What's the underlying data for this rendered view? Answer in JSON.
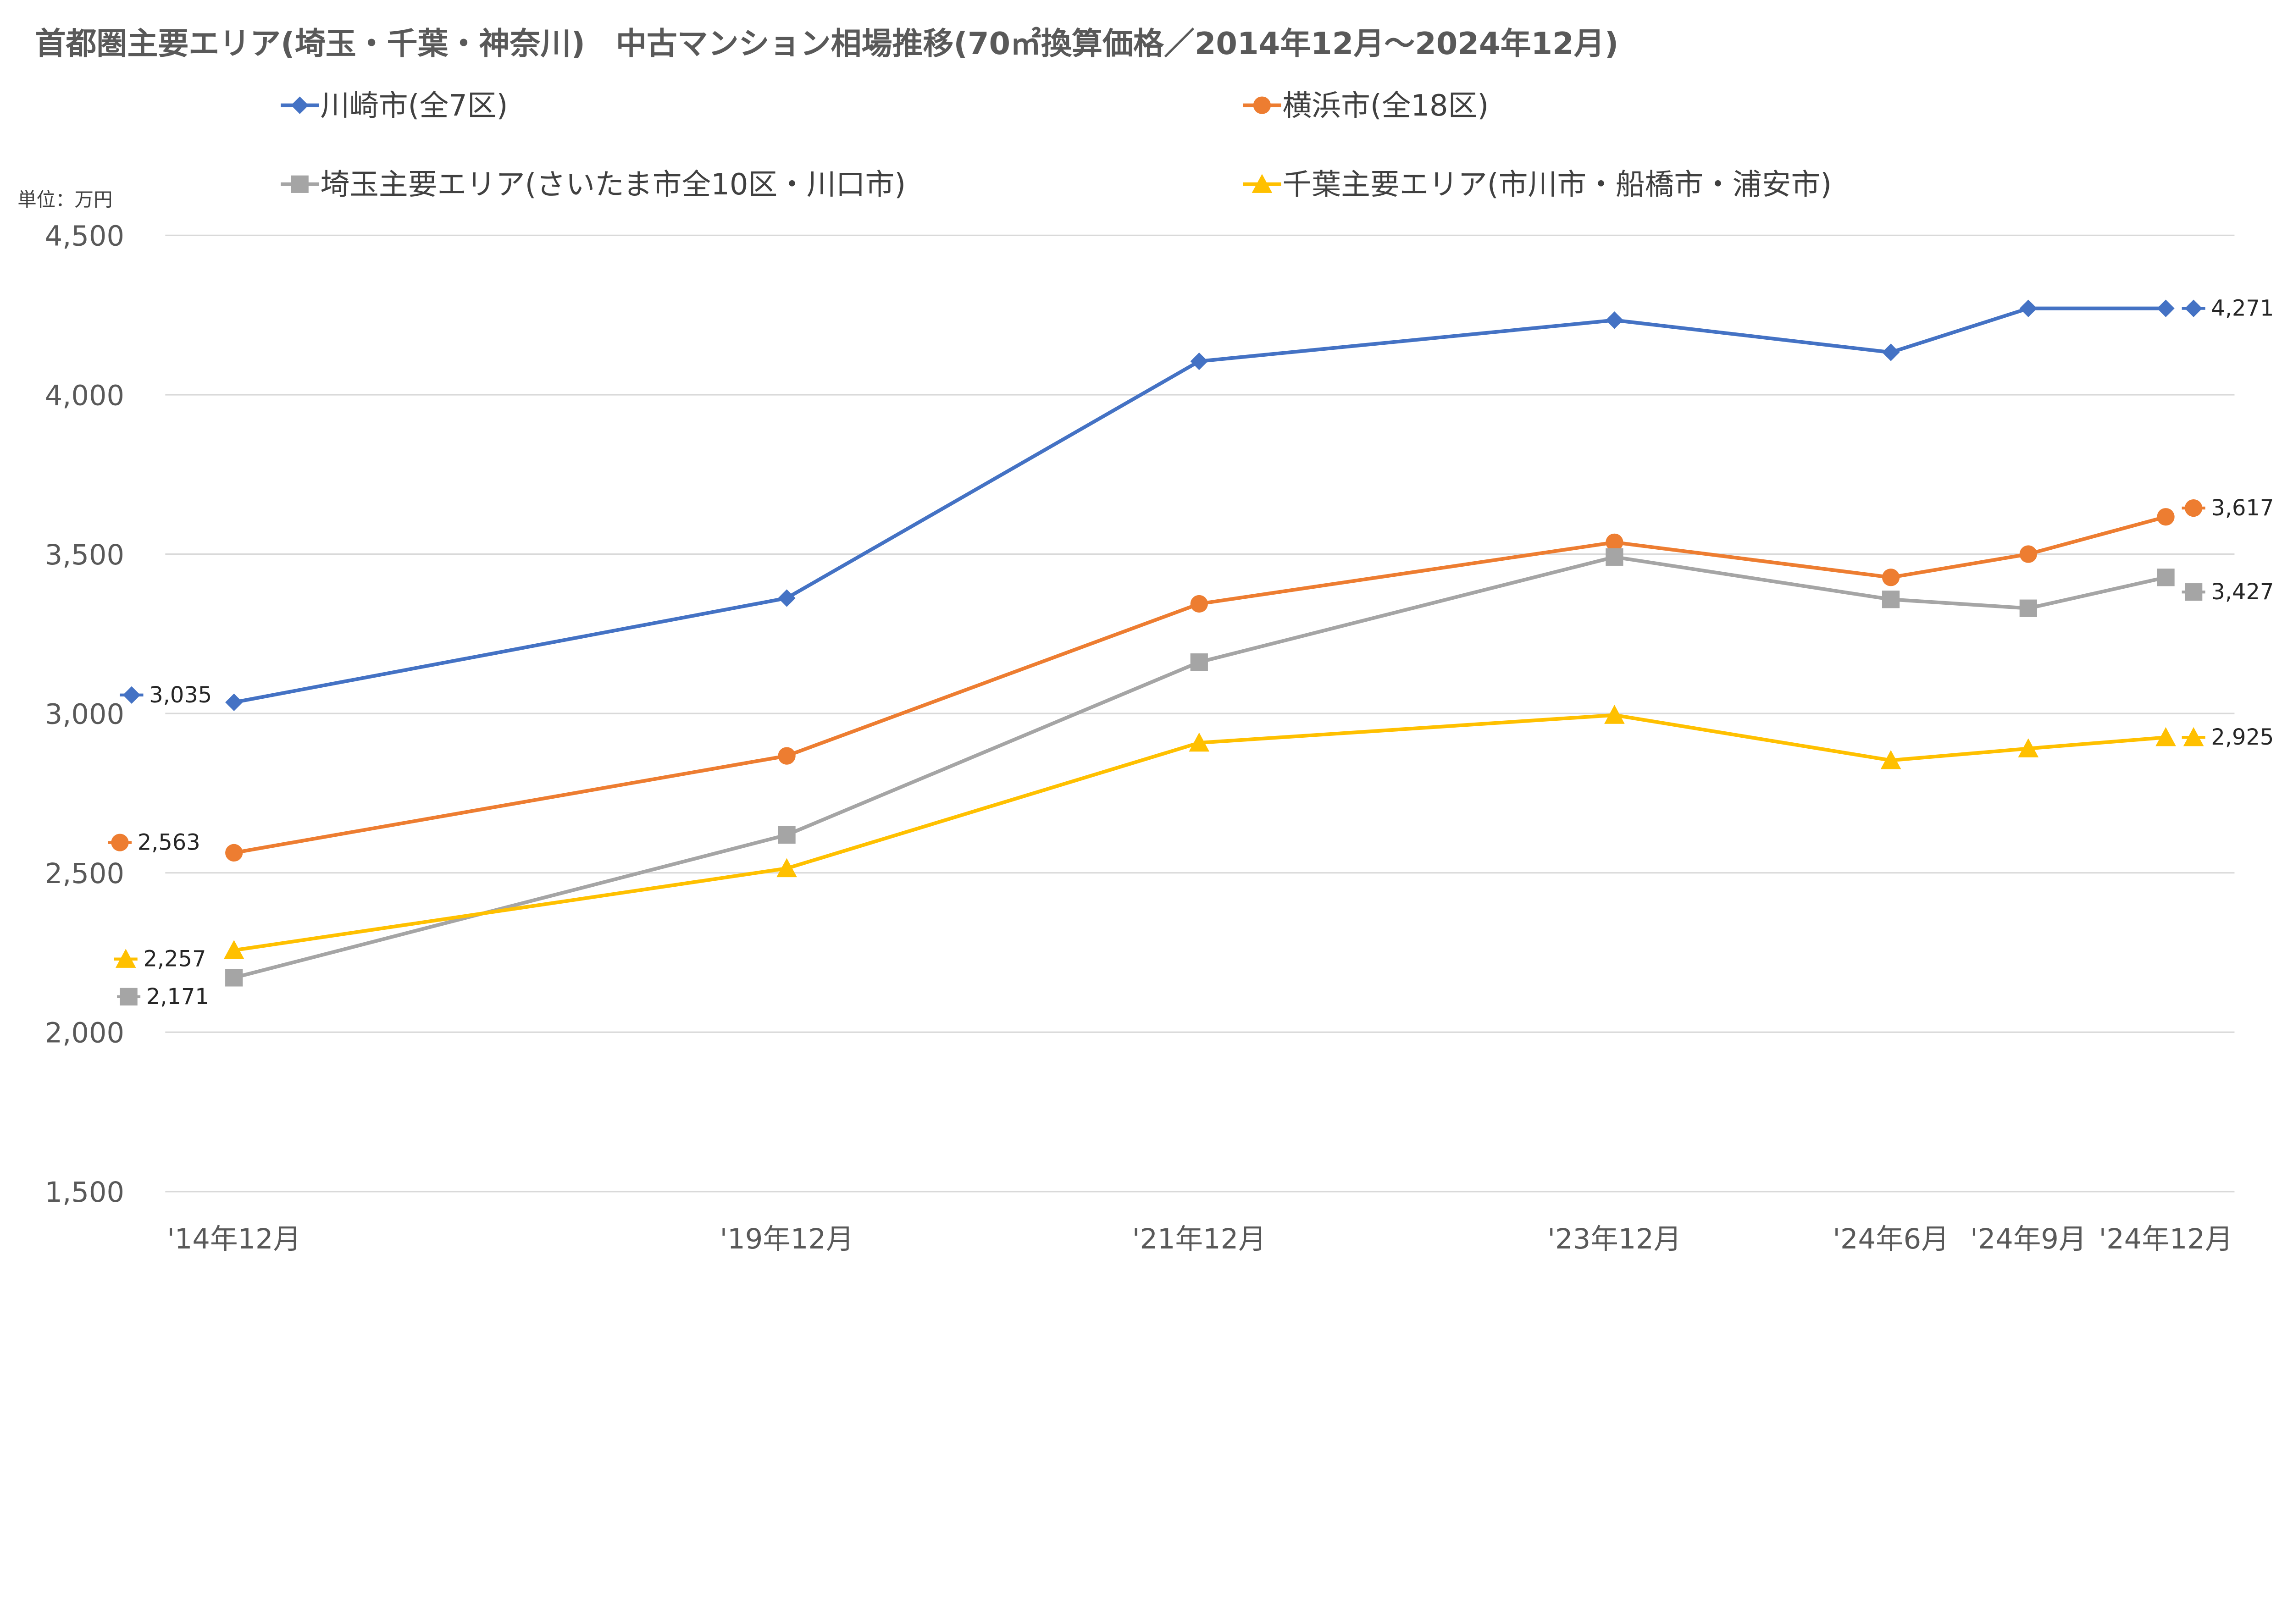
{
  "chart_data": {
    "type": "line",
    "title": "首都圏主要エリア(埼玉・千葉・神奈川)　中古マンション相場推移(70㎡換算価格／2014年12月～2024年12月)",
    "unit_label": "単位：万円",
    "categories": [
      "'14年12月",
      "'19年12月",
      "'21年12月",
      "'23年12月",
      "'24年6月",
      "'24年9月",
      "'24年12月"
    ],
    "ylim": [
      1500,
      4500
    ],
    "yticks": [
      "1,500",
      "2,000",
      "2,500",
      "3,000",
      "3,500",
      "4,000",
      "4,500"
    ],
    "ytick_values": [
      1500,
      2000,
      2500,
      3000,
      3500,
      4000,
      4500
    ],
    "grid": true,
    "legend_placement": "top",
    "series": [
      {
        "name": "川崎市(全7区)",
        "color": "#4472c4",
        "marker": "diamond",
        "values": [
          3035,
          3362,
          4105,
          4234,
          4133,
          4271,
          4271
        ],
        "first_label": "3,035",
        "last_label": "4,271"
      },
      {
        "name": "横浜市(全18区)",
        "color": "#ed7d31",
        "marker": "circle",
        "values": [
          2563,
          2867,
          3344,
          3537,
          3427,
          3500,
          3617
        ],
        "first_label": "2,563",
        "last_label": "3,617"
      },
      {
        "name": "埼玉主要エリア(さいたま市全10区・川口市)",
        "color": "#a5a5a5",
        "marker": "square",
        "values": [
          2171,
          2619,
          3161,
          3491,
          3358,
          3330,
          3427
        ],
        "first_label": "2,171",
        "last_label": "3,427"
      },
      {
        "name": "千葉主要エリア(市川市・船橋市・浦安市)",
        "color": "#ffc000",
        "marker": "triangle",
        "values": [
          2257,
          2514,
          2908,
          2995,
          2853,
          2890,
          2925
        ],
        "first_label": "2,257",
        "last_label": "2,925"
      }
    ]
  }
}
